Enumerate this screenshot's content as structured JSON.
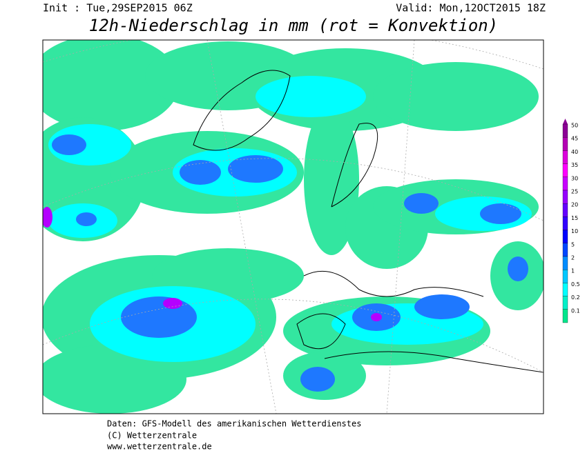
{
  "header": {
    "init": "Init : Tue,29SEP2015 06Z",
    "valid": "Valid: Mon,12OCT2015 18Z",
    "title": "12h-Niederschlag in mm (rot = Konvektion)"
  },
  "legend": {
    "levels": [
      {
        "label": "50",
        "color": "#8c0096"
      },
      {
        "label": "45",
        "color": "#b400b4"
      },
      {
        "label": "40",
        "color": "#dc00dc"
      },
      {
        "label": "35",
        "color": "#ff00ff"
      },
      {
        "label": "30",
        "color": "#c800ff"
      },
      {
        "label": "25",
        "color": "#9600ff"
      },
      {
        "label": "20",
        "color": "#6400ff"
      },
      {
        "label": "15",
        "color": "#3200ff"
      },
      {
        "label": "10",
        "color": "#0000ff"
      },
      {
        "label": "5",
        "color": "#0046ff"
      },
      {
        "label": "2",
        "color": "#008cff"
      },
      {
        "label": "1",
        "color": "#00c8ff"
      },
      {
        "label": "0.5",
        "color": "#00ffff"
      },
      {
        "label": "0.2",
        "color": "#00f0c8"
      },
      {
        "label": "0.1",
        "color": "#00e68c"
      }
    ]
  },
  "footer": {
    "lines": [
      "Daten: GFS-Modell des amerikanischen Wetterdienstes",
      "(C) Wetterzentrale",
      "www.wetterzentrale.de"
    ]
  }
}
